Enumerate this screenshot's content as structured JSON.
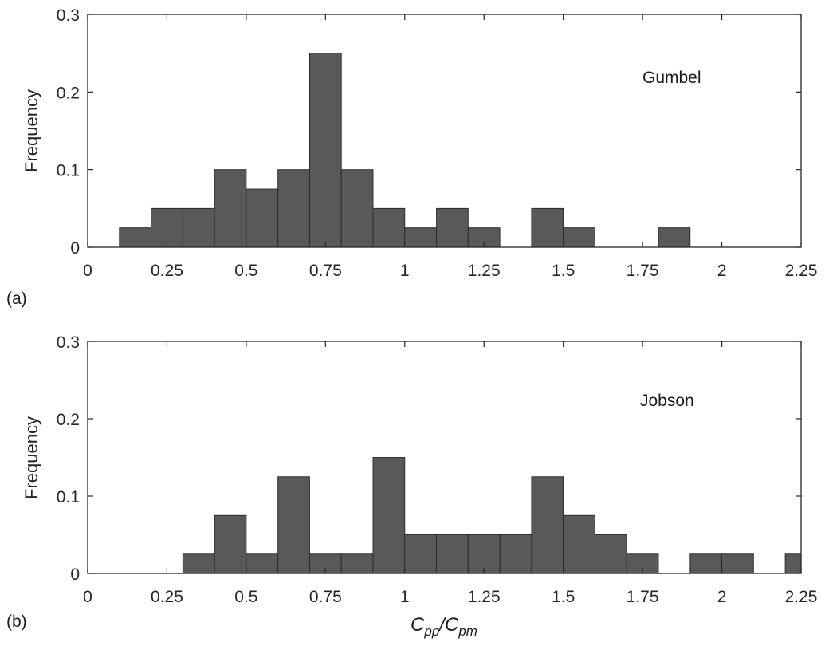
{
  "chart_data": [
    {
      "type": "bar",
      "panel_label": "(a)",
      "annotation": "Gumbel",
      "title": "",
      "xlabel": "",
      "ylabel": "Frequency",
      "xlim": [
        0,
        2.25
      ],
      "ylim": [
        0,
        0.3
      ],
      "xticks": [
        0,
        0.25,
        0.5,
        0.75,
        1,
        1.25,
        1.5,
        1.75,
        2,
        2.25
      ],
      "xtick_labels": [
        "0",
        "0.25",
        "0.5",
        "0.75",
        "1",
        "1.25",
        "1.5",
        "1.75",
        "2",
        "2.25"
      ],
      "yticks": [
        0,
        0.1,
        0.2,
        0.3
      ],
      "ytick_labels": [
        "0",
        "0.1",
        "0.2",
        "0.3"
      ],
      "bin_width": 0.1,
      "bins": [
        {
          "x0": 0.1,
          "x1": 0.2,
          "value": 0.025
        },
        {
          "x0": 0.2,
          "x1": 0.3,
          "value": 0.05
        },
        {
          "x0": 0.3,
          "x1": 0.4,
          "value": 0.05
        },
        {
          "x0": 0.4,
          "x1": 0.5,
          "value": 0.1
        },
        {
          "x0": 0.5,
          "x1": 0.6,
          "value": 0.075
        },
        {
          "x0": 0.6,
          "x1": 0.7,
          "value": 0.1
        },
        {
          "x0": 0.7,
          "x1": 0.8,
          "value": 0.25
        },
        {
          "x0": 0.8,
          "x1": 0.9,
          "value": 0.1
        },
        {
          "x0": 0.9,
          "x1": 1.0,
          "value": 0.05
        },
        {
          "x0": 1.0,
          "x1": 1.1,
          "value": 0.025
        },
        {
          "x0": 1.1,
          "x1": 1.2,
          "value": 0.05
        },
        {
          "x0": 1.2,
          "x1": 1.3,
          "value": 0.025
        },
        {
          "x0": 1.4,
          "x1": 1.5,
          "value": 0.05
        },
        {
          "x0": 1.5,
          "x1": 1.6,
          "value": 0.025
        },
        {
          "x0": 1.8,
          "x1": 1.9,
          "value": 0.025
        }
      ],
      "bar_color": "#595959",
      "edge_color": "#262626",
      "grid": false
    },
    {
      "type": "bar",
      "panel_label": "(b)",
      "annotation": "Jobson",
      "title": "",
      "xlabel": "C_pp/C_pm",
      "xlabel_parts": {
        "c1": "C",
        "sub1": "pp",
        "slash": "/C",
        "sub2": "pm"
      },
      "ylabel": "Frequency",
      "xlim": [
        0,
        2.25
      ],
      "ylim": [
        0,
        0.3
      ],
      "xticks": [
        0,
        0.25,
        0.5,
        0.75,
        1,
        1.25,
        1.5,
        1.75,
        2,
        2.25
      ],
      "xtick_labels": [
        "0",
        "0.25",
        "0.5",
        "0.75",
        "1",
        "1.25",
        "1.5",
        "1.75",
        "2",
        "2.25"
      ],
      "yticks": [
        0,
        0.1,
        0.2,
        0.3
      ],
      "ytick_labels": [
        "0",
        "0.1",
        "0.2",
        "0.3"
      ],
      "bin_width": 0.1,
      "bins": [
        {
          "x0": 0.3,
          "x1": 0.4,
          "value": 0.025
        },
        {
          "x0": 0.4,
          "x1": 0.5,
          "value": 0.075
        },
        {
          "x0": 0.5,
          "x1": 0.6,
          "value": 0.025
        },
        {
          "x0": 0.6,
          "x1": 0.7,
          "value": 0.125
        },
        {
          "x0": 0.7,
          "x1": 0.8,
          "value": 0.025
        },
        {
          "x0": 0.8,
          "x1": 0.9,
          "value": 0.025
        },
        {
          "x0": 0.9,
          "x1": 1.0,
          "value": 0.15
        },
        {
          "x0": 1.0,
          "x1": 1.1,
          "value": 0.05
        },
        {
          "x0": 1.1,
          "x1": 1.2,
          "value": 0.05
        },
        {
          "x0": 1.2,
          "x1": 1.3,
          "value": 0.05
        },
        {
          "x0": 1.3,
          "x1": 1.4,
          "value": 0.05
        },
        {
          "x0": 1.4,
          "x1": 1.5,
          "value": 0.125
        },
        {
          "x0": 1.5,
          "x1": 1.6,
          "value": 0.075
        },
        {
          "x0": 1.6,
          "x1": 1.7,
          "value": 0.05
        },
        {
          "x0": 1.7,
          "x1": 1.8,
          "value": 0.025
        },
        {
          "x0": 1.9,
          "x1": 2.0,
          "value": 0.025
        },
        {
          "x0": 2.0,
          "x1": 2.1,
          "value": 0.025
        },
        {
          "x0": 2.2,
          "x1": 2.3,
          "value": 0.025
        }
      ],
      "bar_color": "#595959",
      "edge_color": "#262626",
      "grid": false
    }
  ]
}
